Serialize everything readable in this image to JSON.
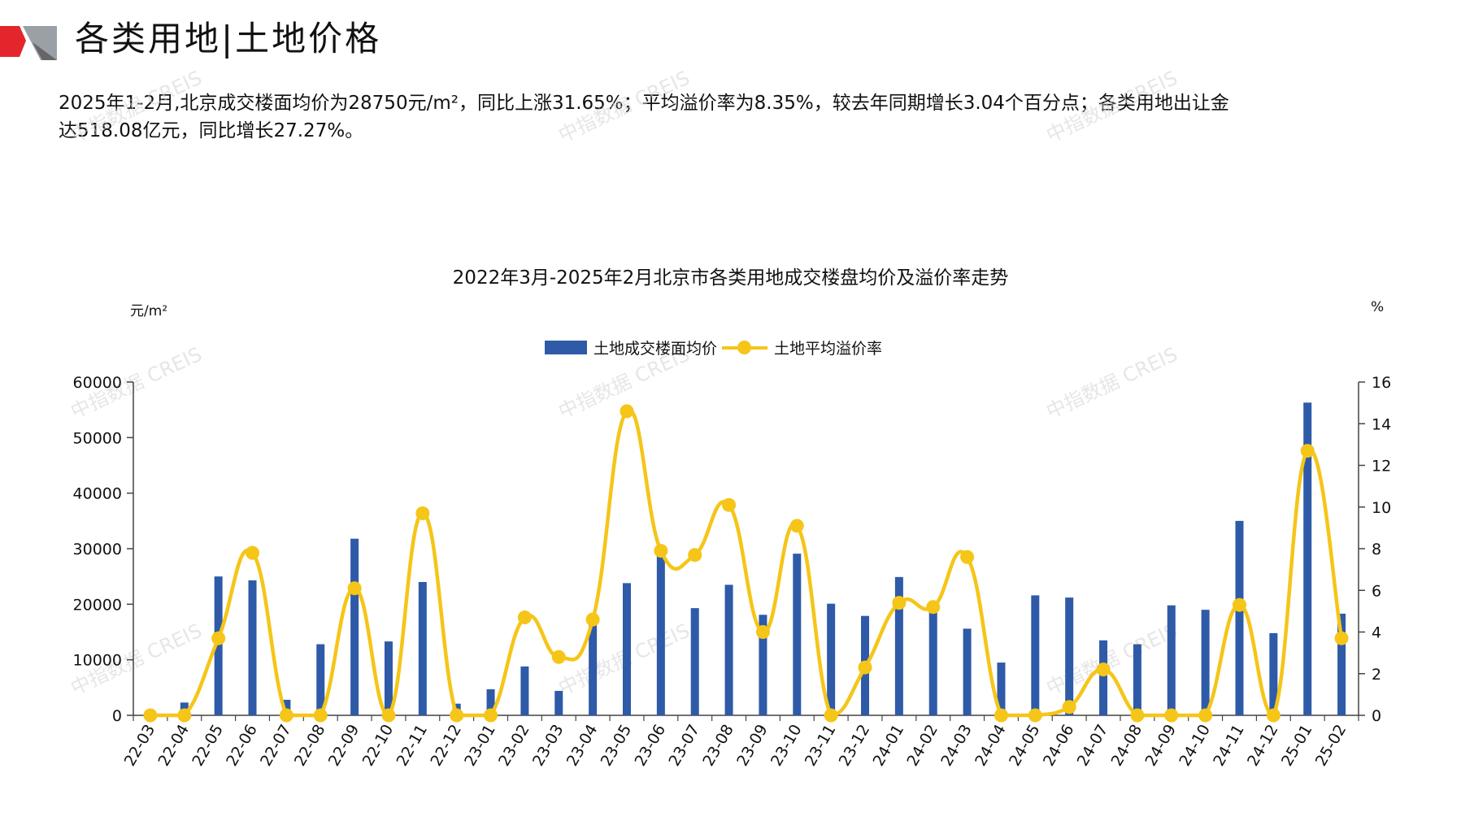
{
  "header": {
    "title": "各类用地|土地价格"
  },
  "summary": {
    "line1": "2025年1-2月,北京成交楼面均价为28750元/m²，同比上涨31.65%；平均溢价率为8.35%，较去年同期增长3.04个百分点；各类用地出让金",
    "line2": "达518.08亿元，同比增长27.27%。"
  },
  "watermark": "中指数据 CREIS",
  "colors": {
    "bar": "#2e5aa8",
    "line": "#f5c518",
    "accent_red": "#e3262b"
  },
  "chart_data": {
    "type": "bar",
    "title": "2022年3月-2025年2月北京市各类用地成交楼盘均价及溢价率走势",
    "ylabel_left": "元/m²",
    "ylabel_right": "%",
    "ylim_left": [
      0,
      60000
    ],
    "ylim_right": [
      0,
      16
    ],
    "yticks_left": [
      0,
      10000,
      20000,
      30000,
      40000,
      50000,
      60000
    ],
    "yticks_right": [
      0,
      2,
      4,
      6,
      8,
      10,
      12,
      14,
      16
    ],
    "legend_position": "top-center",
    "grid": false,
    "categories": [
      "22-03",
      "22-04",
      "22-05",
      "22-06",
      "22-07",
      "22-08",
      "22-09",
      "22-10",
      "22-11",
      "22-12",
      "23-01",
      "23-02",
      "23-03",
      "23-04",
      "23-05",
      "23-06",
      "23-07",
      "23-08",
      "23-09",
      "23-10",
      "23-11",
      "23-12",
      "24-01",
      "24-02",
      "24-03",
      "24-04",
      "24-05",
      "24-06",
      "24-07",
      "24-08",
      "24-09",
      "24-10",
      "24-11",
      "24-12",
      "25-01",
      "25-02"
    ],
    "series": [
      {
        "name": "土地成交楼面均价",
        "type": "bar",
        "axis": "left",
        "values": [
          0,
          2300,
          25000,
          24300,
          2800,
          12800,
          31800,
          13300,
          24000,
          2100,
          4700,
          8800,
          4400,
          16300,
          23800,
          29200,
          19300,
          23500,
          18100,
          29100,
          20100,
          17900,
          24900,
          18500,
          15600,
          9500,
          21600,
          21200,
          13500,
          12800,
          19800,
          19000,
          35000,
          14800,
          56300,
          18300
        ]
      },
      {
        "name": "土地平均溢价率",
        "type": "line",
        "axis": "right",
        "values": [
          0,
          0,
          3.7,
          7.8,
          0,
          0,
          6.1,
          0,
          9.7,
          0,
          0,
          4.7,
          2.8,
          4.6,
          14.6,
          7.9,
          7.7,
          10.1,
          4.0,
          9.1,
          0,
          2.3,
          5.4,
          5.2,
          7.6,
          0,
          0,
          0.4,
          2.2,
          0,
          0,
          0,
          5.3,
          0,
          12.7,
          3.7
        ]
      }
    ]
  }
}
